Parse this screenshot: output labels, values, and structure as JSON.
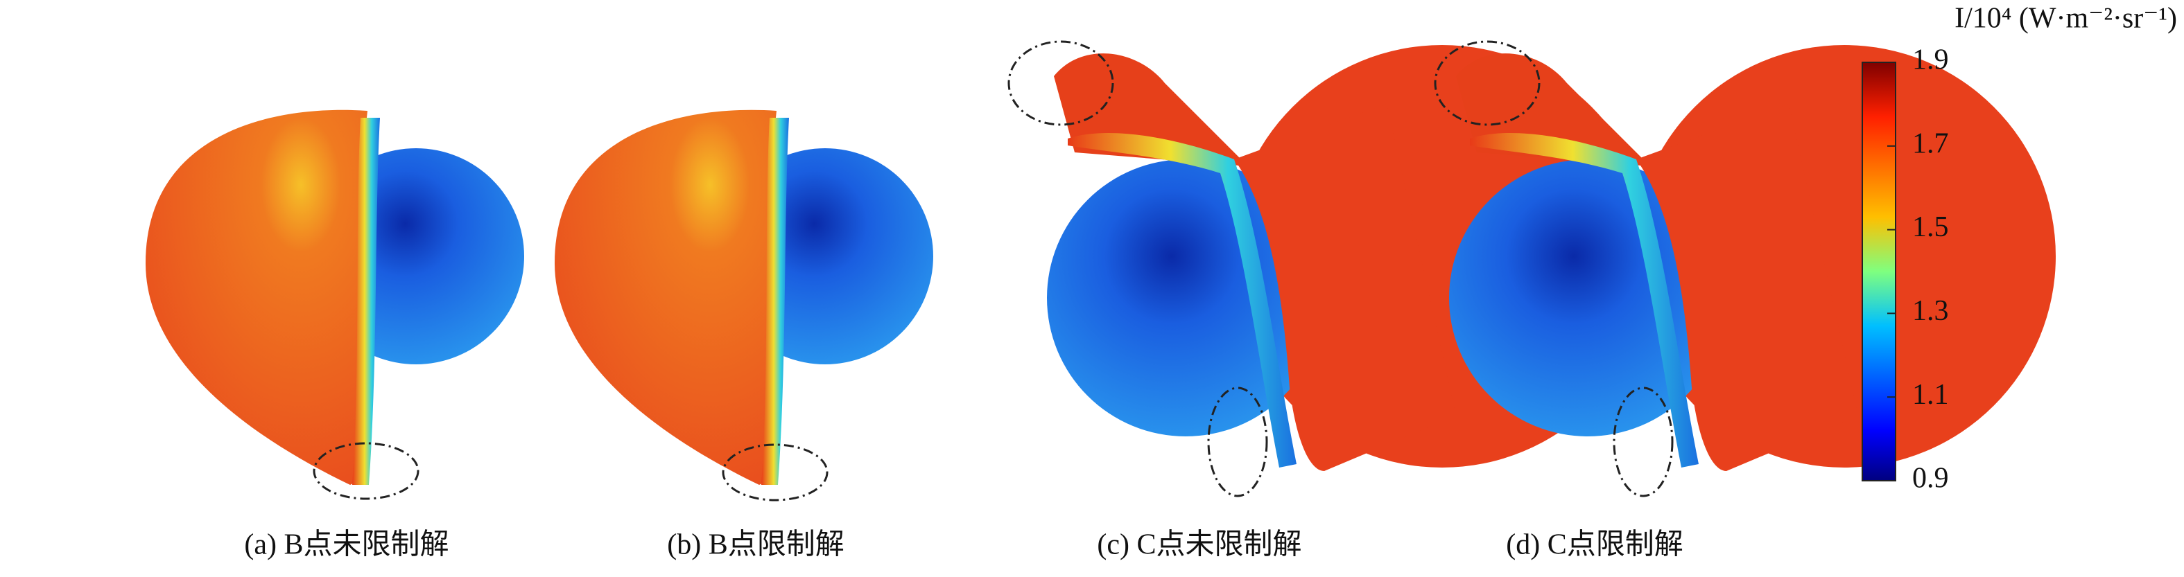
{
  "panels": [
    {
      "caption": "(a) B点未限制解"
    },
    {
      "caption": "(b) B点限制解"
    },
    {
      "caption": "(c) C点未限制解"
    },
    {
      "caption": "(d) C点限制解"
    }
  ],
  "colorbar": {
    "label": "I/10⁴ (W·m⁻²·sr⁻¹)",
    "lim": [
      0.9,
      1.9
    ],
    "ticks": [
      0.9,
      1.1,
      1.3,
      1.5,
      1.7,
      1.9
    ]
  }
}
